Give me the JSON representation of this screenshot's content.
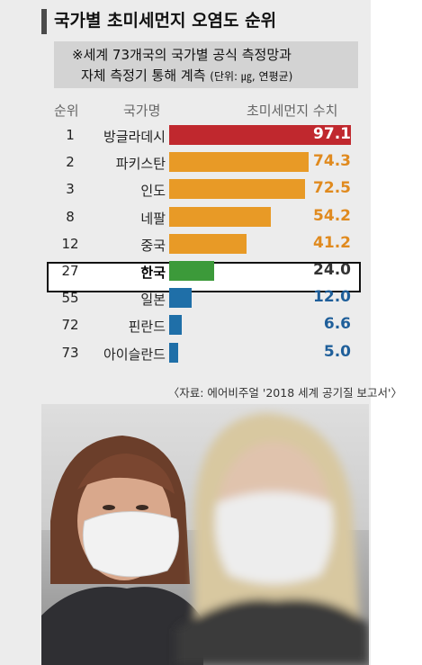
{
  "title": "국가별 초미세먼지 오염도 순위",
  "note": {
    "line1": "※세계 73개국의 국가별 공식 측정망과",
    "line2": "자체 측정기 통해 계측",
    "unit": "(단위: ㎍, 연평균)"
  },
  "headers": {
    "rank": "순위",
    "country": "국가명",
    "value": "초미세먼지 수치"
  },
  "source": "〈자료: 에어비주얼 '2018 세계 공기질 보고서'〉",
  "colors": {
    "red": "#c0282e",
    "orange": "#e89a26",
    "green": "#3c9a3a",
    "blue": "#1f6fa8"
  },
  "chart_data": {
    "type": "bar",
    "orientation": "horizontal",
    "title": "국가별 초미세먼지 오염도 순위",
    "unit": "㎍",
    "highlight": "한국",
    "rows": [
      {
        "rank": "1",
        "country": "방글라데시",
        "value": 97.1,
        "label": "97.1",
        "color": "red"
      },
      {
        "rank": "2",
        "country": "파키스탄",
        "value": 74.3,
        "label": "74.3",
        "color": "orange"
      },
      {
        "rank": "3",
        "country": "인도",
        "value": 72.5,
        "label": "72.5",
        "color": "orange"
      },
      {
        "rank": "8",
        "country": "네팔",
        "value": 54.2,
        "label": "54.2",
        "color": "orange"
      },
      {
        "rank": "12",
        "country": "중국",
        "value": 41.2,
        "label": "41.2",
        "color": "orange"
      },
      {
        "rank": "27",
        "country": "한국",
        "value": 24.0,
        "label": "24.0",
        "color": "green"
      },
      {
        "rank": "55",
        "country": "일본",
        "value": 12.0,
        "label": "12.0",
        "color": "blue"
      },
      {
        "rank": "72",
        "country": "핀란드",
        "value": 6.6,
        "label": "6.6",
        "color": "blue"
      },
      {
        "rank": "73",
        "country": "아이슬란드",
        "value": 5.0,
        "label": "5.0",
        "color": "blue"
      }
    ]
  }
}
